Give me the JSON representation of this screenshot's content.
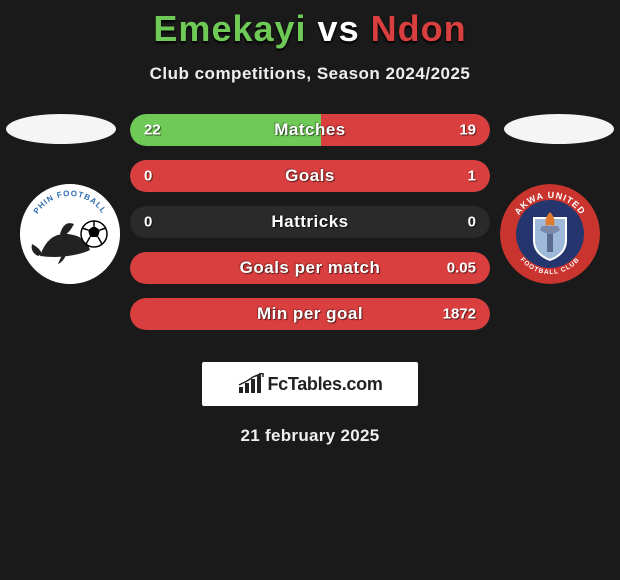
{
  "header": {
    "player1_name": "Emekayi",
    "vs_text": "vs",
    "player2_name": "Ndon",
    "player1_color": "#6fc957",
    "player2_color": "#d93f3f"
  },
  "subtitle": "Club competitions, Season 2024/2025",
  "stats": {
    "row_bg": "#2a2a2a",
    "left_fill_color": "#6fc957",
    "right_fill_color": "#d93f3f",
    "rows": [
      {
        "label": "Matches",
        "left_val": "22",
        "right_val": "19",
        "left_pct": 53,
        "right_pct": 47
      },
      {
        "label": "Goals",
        "left_val": "0",
        "right_val": "1",
        "left_pct": 0,
        "right_pct": 100
      },
      {
        "label": "Hattricks",
        "left_val": "0",
        "right_val": "0",
        "left_pct": 0,
        "right_pct": 0
      },
      {
        "label": "Goals per match",
        "left_val": "",
        "right_val": "0.05",
        "left_pct": 0,
        "right_pct": 100
      },
      {
        "label": "Min per goal",
        "left_val": "",
        "right_val": "1872",
        "left_pct": 0,
        "right_pct": 100
      }
    ]
  },
  "clubs": {
    "left": {
      "name": "dolphin-club",
      "bg": "#ffffff",
      "arc_text_color": "#2f6db3",
      "dolphin_color": "#222222",
      "ball_color": "#ffffff",
      "ball_patch": "#000000"
    },
    "right": {
      "name": "akwa-united",
      "outer_ring": "#c9342e",
      "inner_bg": "#25356e",
      "ring_text_top": "AKWA UNITED",
      "ring_text_bottom": "FOOTBALL CLUB",
      "ring_text_color": "#ffffff",
      "shield_stroke": "#ffffff",
      "shield_fill": "#9fb9d9",
      "torch_flame": "#e07a2f"
    }
  },
  "footer": {
    "logo_text": "FcTables.com",
    "logo_icon_color": "#222222",
    "date": "21 february 2025"
  }
}
